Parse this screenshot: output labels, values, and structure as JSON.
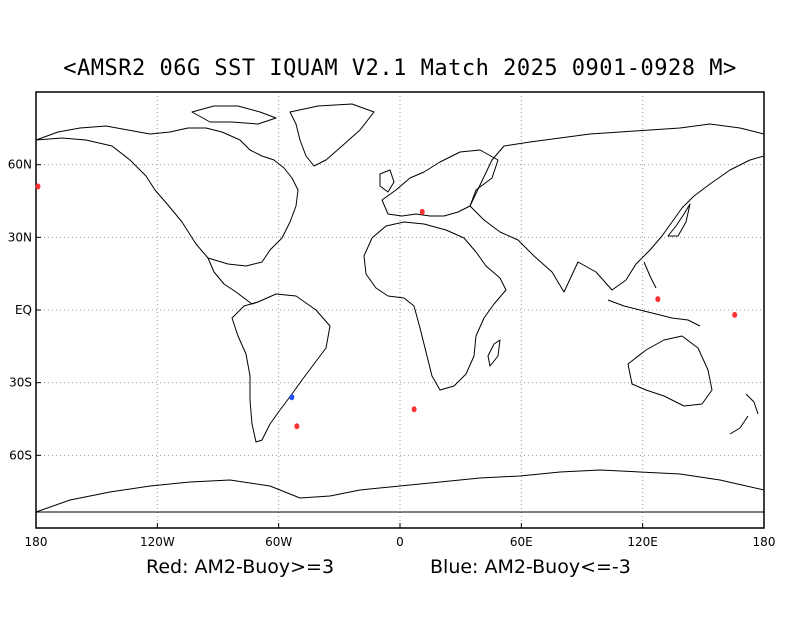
{
  "title": "<AMSR2 06G SST IQUAM V2.1 Match 2025 0901-0928 M>",
  "legend": {
    "red": "Red: AM2-Buoy>=3",
    "blue": "Blue: AM2-Buoy<=-3"
  },
  "axes": {
    "lon_ticks": [
      {
        "lon": -180,
        "label": "180"
      },
      {
        "lon": -120,
        "label": "120W"
      },
      {
        "lon": -60,
        "label": "60W"
      },
      {
        "lon": 0,
        "label": "0"
      },
      {
        "lon": 60,
        "label": "60E"
      },
      {
        "lon": 120,
        "label": "120E"
      },
      {
        "lon": 180,
        "label": "180"
      }
    ],
    "lat_ticks": [
      {
        "lat": 60,
        "label": "60N"
      },
      {
        "lat": 30,
        "label": "30N"
      },
      {
        "lat": 0,
        "label": "EQ"
      },
      {
        "lat": -30,
        "label": "30S"
      },
      {
        "lat": -60,
        "label": "60S"
      }
    ],
    "lon_range": [
      -180,
      180
    ],
    "lat_range": [
      -90,
      90
    ],
    "grid": true
  },
  "colors": {
    "red": "#ff3030",
    "blue": "#1f4fff"
  },
  "points": [
    {
      "lon": -179,
      "lat": 51,
      "color": "red"
    },
    {
      "lon": 11,
      "lat": 40.5,
      "color": "red"
    },
    {
      "lon": 127.5,
      "lat": 4.5,
      "color": "red"
    },
    {
      "lon": 165.5,
      "lat": -2,
      "color": "red"
    },
    {
      "lon": 7,
      "lat": -41,
      "color": "red"
    },
    {
      "lon": -51,
      "lat": -48,
      "color": "red"
    },
    {
      "lon": -53.5,
      "lat": -36,
      "color": "blue"
    }
  ]
}
